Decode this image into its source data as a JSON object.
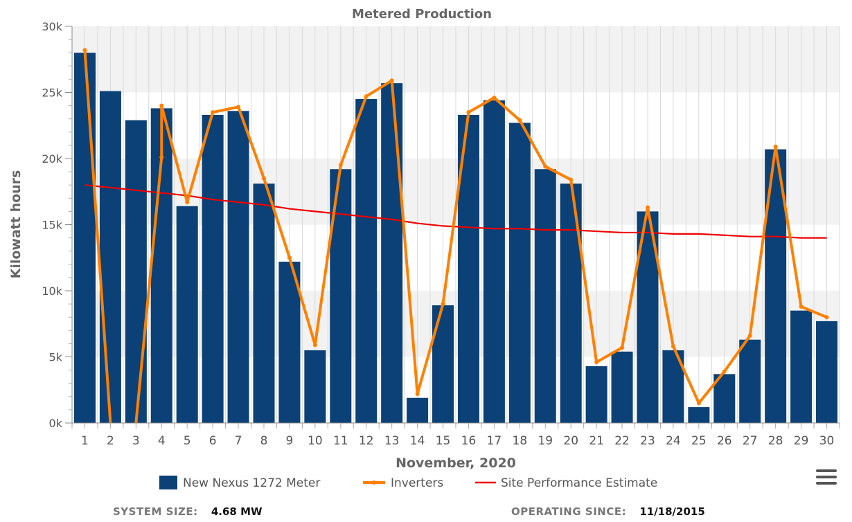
{
  "chart_data": {
    "type": "bar",
    "title": "Metered Production",
    "xlabel": "November, 2020",
    "ylabel": "Kilowatt hours",
    "ylim": [
      0,
      30000
    ],
    "yticks": [
      0,
      5000,
      10000,
      15000,
      20000,
      25000,
      30000
    ],
    "ytick_labels": [
      "0k",
      "5k",
      "10k",
      "15k",
      "20k",
      "25k",
      "30k"
    ],
    "categories": [
      "1",
      "2",
      "3",
      "4",
      "5",
      "6",
      "7",
      "8",
      "9",
      "10",
      "11",
      "12",
      "13",
      "14",
      "15",
      "16",
      "17",
      "18",
      "19",
      "20",
      "21",
      "22",
      "23",
      "24",
      "25",
      "26",
      "27",
      "28",
      "29",
      "30"
    ],
    "grid": true,
    "legend_position": "bottom",
    "series": [
      {
        "name": "New Nexus 1272 Meter",
        "kind": "bar",
        "color": "#0b4176",
        "values": [
          28000,
          25100,
          22900,
          23800,
          16400,
          23300,
          23600,
          18100,
          12200,
          5500,
          19200,
          24500,
          25700,
          1900,
          8900,
          23300,
          24400,
          22700,
          19200,
          18100,
          4300,
          5400,
          16000,
          5500,
          1200,
          3700,
          6300,
          20700,
          8500,
          7700
        ]
      },
      {
        "name": "Inverters",
        "kind": "line",
        "color": "#ff8000",
        "values": [
          28200,
          0,
          0,
          24000,
          16700,
          23500,
          23900,
          18500,
          12500,
          5900,
          19500,
          24700,
          25900,
          2200,
          9000,
          23500,
          24600,
          22900,
          19400,
          18400,
          4600,
          5700,
          16300,
          5800,
          1500,
          3900,
          6600,
          20900,
          8800,
          8000
        ],
        "offscale_segment": {
          "from_x": 1,
          "to_x": 3,
          "to_value": 20100
        }
      },
      {
        "name": "Site Performance Estimate",
        "kind": "line",
        "color": "#ee0000",
        "values": [
          18000,
          17800,
          17600,
          17400,
          17200,
          16900,
          16700,
          16500,
          16200,
          16000,
          15800,
          15600,
          15400,
          15100,
          14900,
          14800,
          14700,
          14700,
          14600,
          14600,
          14500,
          14400,
          14400,
          14300,
          14300,
          14200,
          14100,
          14100,
          14000,
          14000
        ]
      }
    ]
  },
  "footer": {
    "system_size_label": "SYSTEM SIZE:",
    "system_size_value": "4.68 MW",
    "operating_since_label": "OPERATING SINCE:",
    "operating_since_value": "11/18/2015"
  },
  "icons": {
    "menu": "hamburger-menu-icon"
  }
}
